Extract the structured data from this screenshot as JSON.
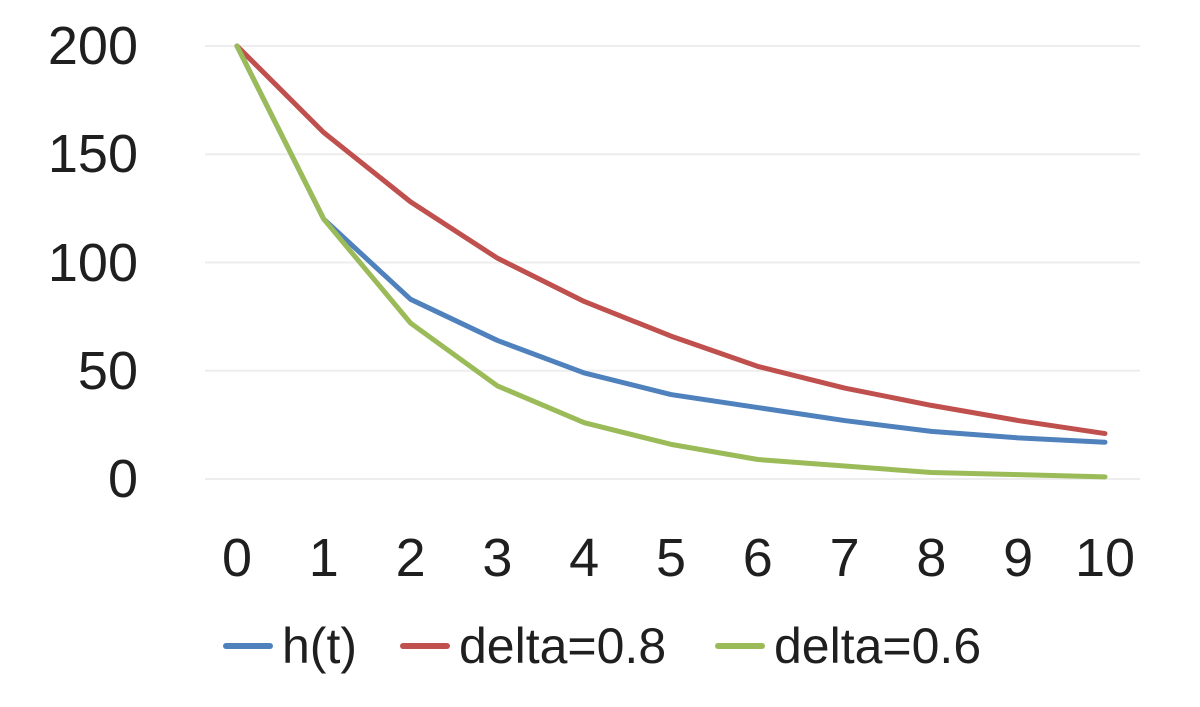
{
  "chart_data": {
    "type": "line",
    "title": "",
    "xlabel": "",
    "ylabel": "",
    "x": [
      0,
      1,
      2,
      3,
      4,
      5,
      6,
      7,
      8,
      9,
      10
    ],
    "x_tick_labels": [
      "0",
      "1",
      "2",
      "3",
      "4",
      "5",
      "6",
      "7",
      "8",
      "9",
      "10"
    ],
    "y_tick_labels": [
      "200",
      "150",
      "100",
      "50",
      "0"
    ],
    "y_tick_values": [
      200,
      150,
      100,
      50,
      0
    ],
    "xlim": [
      0,
      10
    ],
    "ylim": [
      0,
      200
    ],
    "grid": "faint horizontal gridlines every 50 units, no axis lines",
    "legend_position": "bottom-center horizontal",
    "series": [
      {
        "name": "h(t)",
        "color": "#4f81bd",
        "values": [
          200,
          120,
          83,
          64,
          49,
          39,
          33,
          27,
          22,
          19,
          17
        ]
      },
      {
        "name": "delta=0.8",
        "color": "#c0504d",
        "values": [
          200,
          160,
          128,
          102,
          82,
          66,
          52,
          42,
          34,
          27,
          21
        ]
      },
      {
        "name": "delta=0.6",
        "color": "#9bbb59",
        "values": [
          200,
          120,
          72,
          43,
          26,
          16,
          9,
          6,
          3,
          2,
          1
        ]
      }
    ],
    "colors": {
      "background": "#ffffff",
      "text": "#1f1f1f",
      "gridline": "#ededed"
    }
  }
}
